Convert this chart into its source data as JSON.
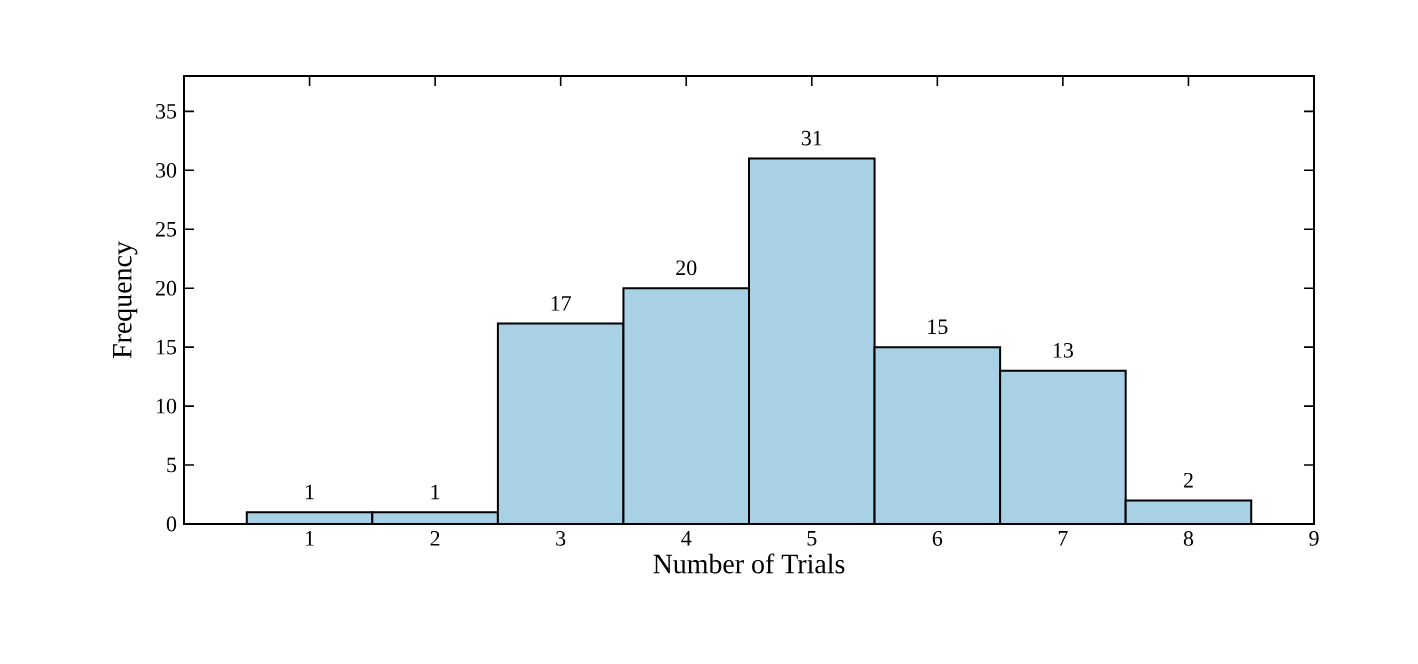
{
  "chart_data": {
    "type": "histogram",
    "xlabel": "Number of Trials",
    "ylabel": "Frequency",
    "bins": [
      0.5,
      1.5,
      2.5,
      3.5,
      4.5,
      5.5,
      6.5,
      7.5,
      8.5
    ],
    "values": [
      1,
      1,
      17,
      20,
      31,
      15,
      13,
      2
    ],
    "color": "#a9d1e6",
    "data_labels": true,
    "xlim": [
      0,
      9
    ],
    "ylim": [
      0,
      38
    ],
    "xticks": [
      1,
      2,
      3,
      4,
      5,
      6,
      7,
      8,
      9
    ],
    "yticks": [
      0,
      5,
      10,
      15,
      20,
      25,
      30,
      35
    ]
  }
}
